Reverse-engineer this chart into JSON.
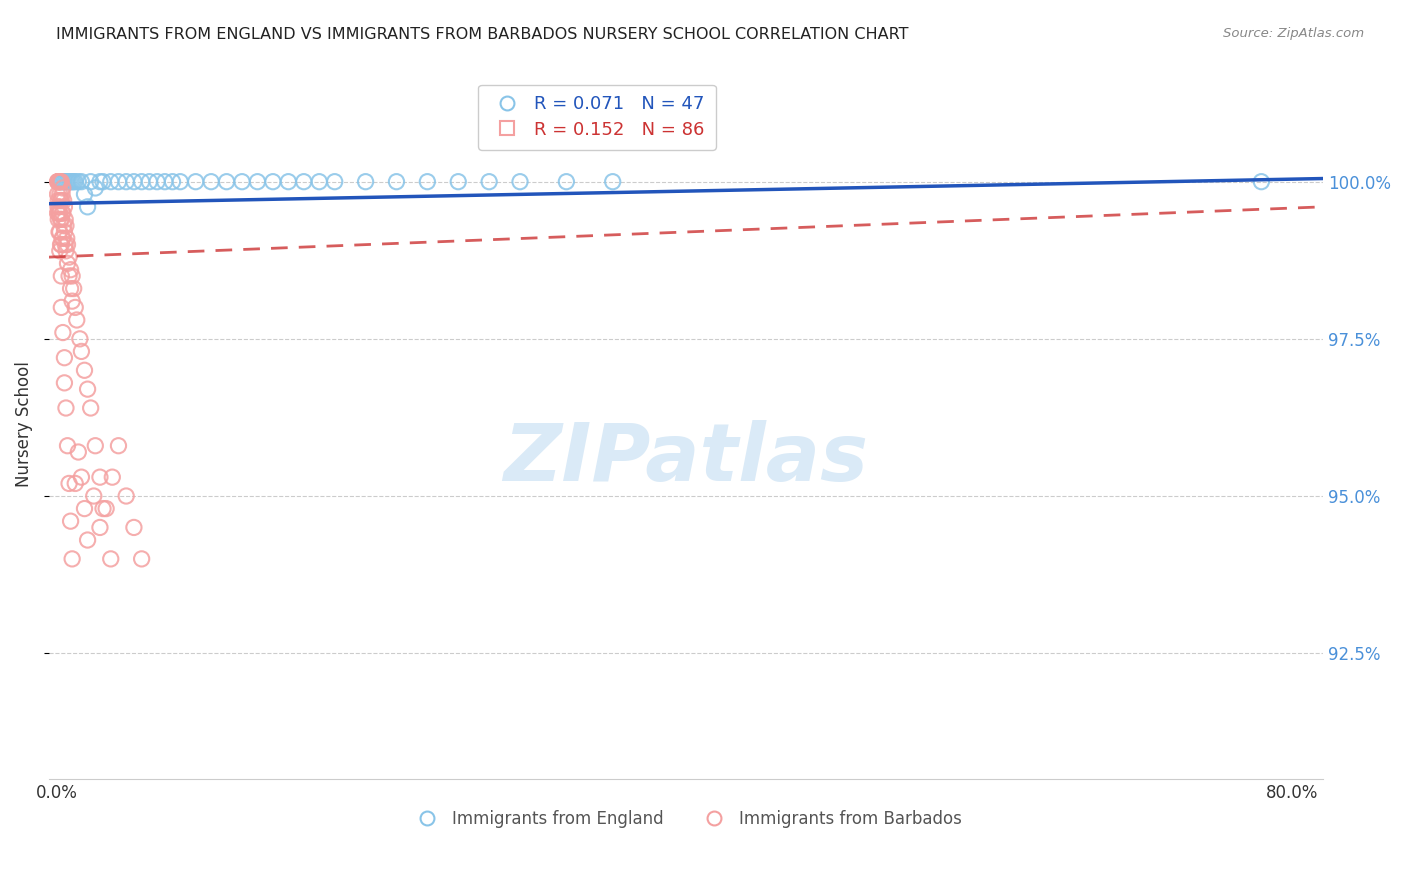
{
  "title": "IMMIGRANTS FROM ENGLAND VS IMMIGRANTS FROM BARBADOS NURSERY SCHOOL CORRELATION CHART",
  "source": "Source: ZipAtlas.com",
  "ylabel": "Nursery School",
  "ytick_values": [
    92.5,
    95.0,
    97.5,
    100.0
  ],
  "ylim": [
    90.5,
    101.8
  ],
  "xlim": [
    -0.5,
    82.0
  ],
  "color_england": "#89c4e8",
  "color_barbados": "#f4a0a0",
  "color_trendline_england": "#2255bb",
  "color_trendline_barbados": "#cc3333",
  "color_tick_right": "#4a90d9",
  "watermark_color": "#daeaf7",
  "england_x": [
    0.3,
    0.4,
    0.5,
    0.6,
    0.7,
    0.8,
    0.9,
    1.0,
    1.1,
    1.2,
    1.4,
    1.6,
    1.8,
    2.0,
    2.2,
    2.5,
    2.8,
    3.0,
    3.5,
    4.0,
    4.5,
    5.0,
    5.5,
    6.0,
    6.5,
    7.0,
    7.5,
    8.0,
    9.0,
    10.0,
    11.0,
    12.0,
    13.0,
    14.0,
    15.0,
    16.0,
    17.0,
    18.0,
    20.0,
    22.0,
    24.0,
    26.0,
    28.0,
    30.0,
    33.0,
    36.0,
    78.0
  ],
  "england_y": [
    100.0,
    100.0,
    100.0,
    100.0,
    100.0,
    100.0,
    100.0,
    100.0,
    100.0,
    100.0,
    100.0,
    100.0,
    99.8,
    99.6,
    100.0,
    99.9,
    100.0,
    100.0,
    100.0,
    100.0,
    100.0,
    100.0,
    100.0,
    100.0,
    100.0,
    100.0,
    100.0,
    100.0,
    100.0,
    100.0,
    100.0,
    100.0,
    100.0,
    100.0,
    100.0,
    100.0,
    100.0,
    100.0,
    100.0,
    100.0,
    100.0,
    100.0,
    100.0,
    100.0,
    100.0,
    100.0,
    100.0
  ],
  "barbados_x": [
    0.05,
    0.05,
    0.05,
    0.08,
    0.08,
    0.1,
    0.1,
    0.1,
    0.12,
    0.12,
    0.15,
    0.15,
    0.15,
    0.18,
    0.18,
    0.2,
    0.2,
    0.2,
    0.2,
    0.2,
    0.25,
    0.25,
    0.25,
    0.25,
    0.3,
    0.3,
    0.3,
    0.3,
    0.35,
    0.35,
    0.35,
    0.4,
    0.4,
    0.4,
    0.45,
    0.45,
    0.5,
    0.5,
    0.55,
    0.55,
    0.6,
    0.6,
    0.65,
    0.7,
    0.7,
    0.8,
    0.8,
    0.9,
    0.9,
    1.0,
    1.0,
    1.1,
    1.2,
    1.3,
    1.5,
    1.6,
    1.8,
    2.0,
    2.2,
    2.5,
    2.8,
    3.0,
    3.5,
    0.3,
    0.3,
    0.4,
    0.5,
    0.5,
    0.6,
    0.7,
    0.8,
    0.9,
    1.0,
    1.2,
    1.4,
    1.6,
    1.8,
    2.0,
    2.4,
    2.8,
    3.2,
    3.6,
    4.0,
    4.5,
    5.0,
    5.5
  ],
  "barbados_y": [
    100.0,
    99.8,
    99.5,
    100.0,
    99.6,
    100.0,
    99.7,
    99.4,
    100.0,
    99.5,
    100.0,
    99.6,
    99.2,
    100.0,
    99.5,
    100.0,
    99.8,
    99.5,
    99.2,
    98.9,
    100.0,
    99.7,
    99.4,
    99.0,
    100.0,
    99.7,
    99.4,
    99.0,
    99.8,
    99.5,
    99.1,
    99.9,
    99.5,
    99.1,
    99.7,
    99.3,
    99.6,
    99.2,
    99.4,
    99.0,
    99.3,
    98.9,
    99.1,
    99.0,
    98.7,
    98.8,
    98.5,
    98.6,
    98.3,
    98.5,
    98.1,
    98.3,
    98.0,
    97.8,
    97.5,
    97.3,
    97.0,
    96.7,
    96.4,
    95.8,
    95.3,
    94.8,
    94.0,
    98.5,
    98.0,
    97.6,
    97.2,
    96.8,
    96.4,
    95.8,
    95.2,
    94.6,
    94.0,
    95.2,
    95.7,
    95.3,
    94.8,
    94.3,
    95.0,
    94.5,
    94.8,
    95.3,
    95.8,
    95.0,
    94.5,
    94.0
  ],
  "eng_trend_x": [
    -0.5,
    82.0
  ],
  "eng_trend_y": [
    99.65,
    100.05
  ],
  "barb_trend_x": [
    -0.5,
    82.0
  ],
  "barb_trend_y": [
    98.8,
    99.6
  ]
}
